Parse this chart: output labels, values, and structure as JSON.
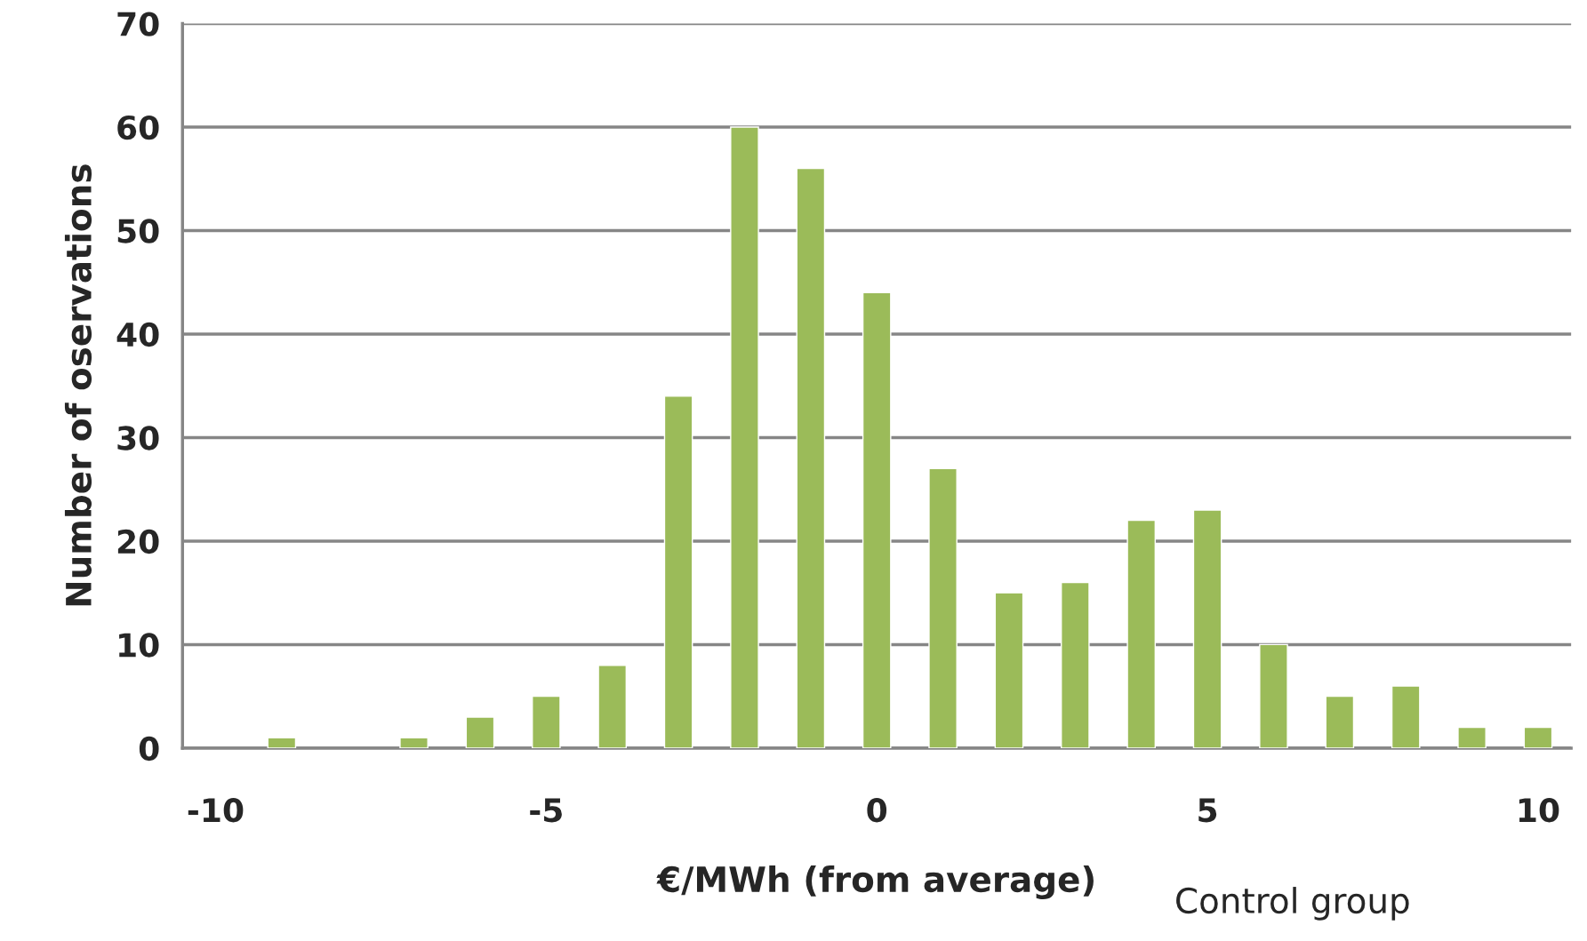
{
  "chart_data": {
    "type": "bar",
    "xlabel": "€/MWh (from average)",
    "ylabel": "Number of oservations",
    "x": [
      -9,
      -7,
      -6,
      -5,
      -4,
      -3,
      -2,
      -1,
      0,
      1,
      2,
      3,
      4,
      5,
      6,
      7,
      8,
      9,
      10
    ],
    "values": [
      1,
      1,
      3,
      5,
      8,
      34,
      60,
      56,
      44,
      27,
      15,
      16,
      22,
      23,
      10,
      5,
      6,
      2,
      2
    ],
    "color": "#9bbb59",
    "xlim": [
      -10.5,
      10.5
    ],
    "xticks": [
      -10,
      -5,
      0,
      5,
      10
    ],
    "ylim": [
      0,
      70
    ],
    "yticks": [
      0,
      10,
      20,
      30,
      40,
      50,
      60,
      70
    ],
    "grid": "y",
    "annotations": [
      "Control group"
    ]
  }
}
